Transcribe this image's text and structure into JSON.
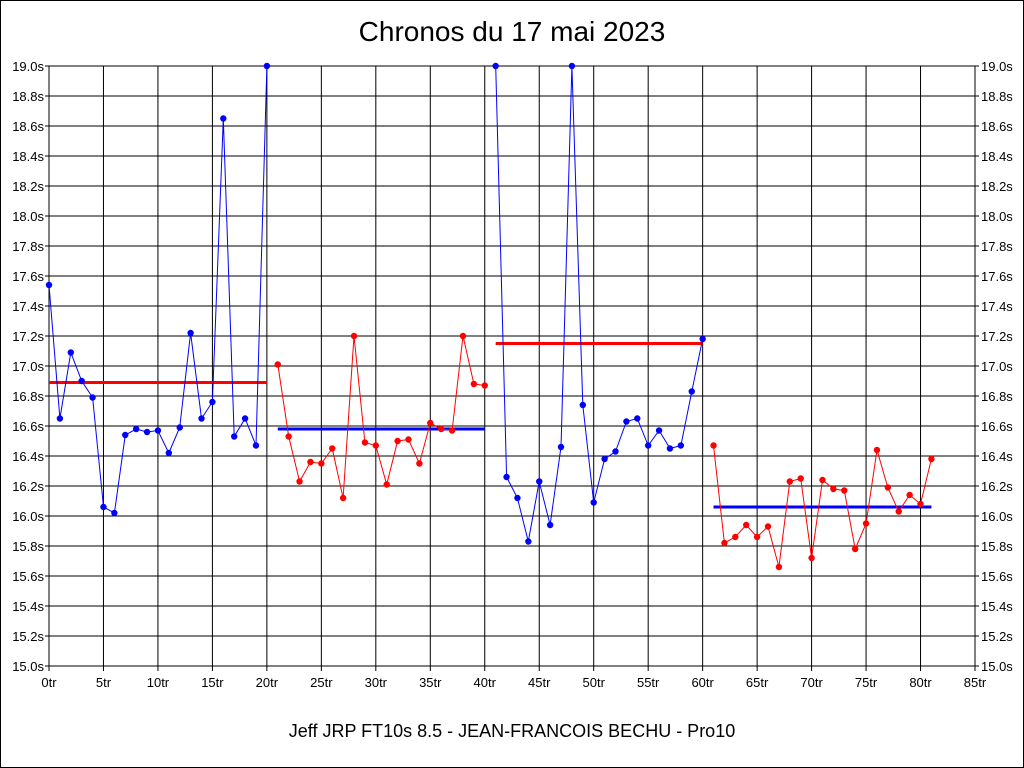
{
  "chart_data": {
    "type": "line",
    "title": "Chronos du 17 mai 2023",
    "footer": "Jeff JRP FT10s 8.5 - JEAN-FRANCOIS BECHU - Pro10",
    "xlabel": "",
    "ylabel": "",
    "xlim": [
      0,
      85
    ],
    "ylim": [
      15.0,
      19.0
    ],
    "grid": true,
    "x_ticks": [
      {
        "value": 0,
        "label": "0tr"
      },
      {
        "value": 5,
        "label": "5tr"
      },
      {
        "value": 10,
        "label": "10tr"
      },
      {
        "value": 15,
        "label": "15tr"
      },
      {
        "value": 20,
        "label": "20tr"
      },
      {
        "value": 25,
        "label": "25tr"
      },
      {
        "value": 30,
        "label": "30tr"
      },
      {
        "value": 35,
        "label": "35tr"
      },
      {
        "value": 40,
        "label": "40tr"
      },
      {
        "value": 45,
        "label": "45tr"
      },
      {
        "value": 50,
        "label": "50tr"
      },
      {
        "value": 55,
        "label": "55tr"
      },
      {
        "value": 60,
        "label": "60tr"
      },
      {
        "value": 65,
        "label": "65tr"
      },
      {
        "value": 70,
        "label": "70tr"
      },
      {
        "value": 75,
        "label": "75tr"
      },
      {
        "value": 80,
        "label": "80tr"
      },
      {
        "value": 85,
        "label": "85tr"
      }
    ],
    "y_ticks": [
      {
        "value": 15.0,
        "label": "15.0s"
      },
      {
        "value": 15.2,
        "label": "15.2s"
      },
      {
        "value": 15.4,
        "label": "15.4s"
      },
      {
        "value": 15.6,
        "label": "15.6s"
      },
      {
        "value": 15.8,
        "label": "15.8s"
      },
      {
        "value": 16.0,
        "label": "16.0s"
      },
      {
        "value": 16.2,
        "label": "16.2s"
      },
      {
        "value": 16.4,
        "label": "16.4s"
      },
      {
        "value": 16.6,
        "label": "16.6s"
      },
      {
        "value": 16.8,
        "label": "16.8s"
      },
      {
        "value": 17.0,
        "label": "17.0s"
      },
      {
        "value": 17.2,
        "label": "17.2s"
      },
      {
        "value": 17.4,
        "label": "17.4s"
      },
      {
        "value": 17.6,
        "label": "17.6s"
      },
      {
        "value": 17.8,
        "label": "17.8s"
      },
      {
        "value": 18.0,
        "label": "18.0s"
      },
      {
        "value": 18.2,
        "label": "18.2s"
      },
      {
        "value": 18.4,
        "label": "18.4s"
      },
      {
        "value": 18.6,
        "label": "18.6s"
      },
      {
        "value": 18.8,
        "label": "18.8s"
      },
      {
        "value": 19.0,
        "label": "19.0s"
      }
    ],
    "series": [
      {
        "color": "#0000ff",
        "x": [
          0,
          1,
          2,
          3,
          4,
          5,
          6,
          7,
          8,
          9,
          10,
          11,
          12,
          13,
          14,
          15,
          16,
          17,
          18,
          19,
          20
        ],
        "y": [
          17.54,
          16.65,
          17.09,
          16.9,
          16.79,
          16.06,
          16.02,
          16.54,
          16.58,
          16.56,
          16.57,
          16.42,
          16.59,
          17.22,
          16.65,
          16.76,
          18.65,
          16.53,
          16.65,
          16.47,
          19.0
        ]
      },
      {
        "color": "#ff0000",
        "x": [
          21,
          22,
          23,
          24,
          25,
          26,
          27,
          28,
          29,
          30,
          31,
          32,
          33,
          34,
          35,
          36,
          37,
          38,
          39,
          40
        ],
        "y": [
          17.01,
          16.53,
          16.23,
          16.36,
          16.35,
          16.45,
          16.12,
          17.2,
          16.49,
          16.47,
          16.21,
          16.5,
          16.51,
          16.35,
          16.62,
          16.58,
          16.57,
          17.2,
          16.88,
          16.87
        ]
      },
      {
        "color": "#0000ff",
        "x": [
          41,
          42,
          43,
          44,
          45,
          46,
          47,
          48,
          49,
          50,
          51,
          52,
          53,
          54,
          55,
          56,
          57,
          58,
          59,
          60
        ],
        "y": [
          19.0,
          16.26,
          16.12,
          15.83,
          16.23,
          15.94,
          16.46,
          19.0,
          16.74,
          16.09,
          16.38,
          16.43,
          16.63,
          16.65,
          16.47,
          16.57,
          16.45,
          16.47,
          16.83,
          17.18
        ]
      },
      {
        "color": "#ff0000",
        "x": [
          61,
          62,
          63,
          64,
          65,
          66,
          67,
          68,
          69,
          70,
          71,
          72,
          73,
          74,
          75,
          76,
          77,
          78,
          79,
          80,
          81
        ],
        "y": [
          16.47,
          15.82,
          15.86,
          15.94,
          15.86,
          15.93,
          15.66,
          16.23,
          16.25,
          15.72,
          16.24,
          16.18,
          16.17,
          15.78,
          15.95,
          16.44,
          16.19,
          16.03,
          16.14,
          16.08,
          16.38
        ]
      }
    ],
    "averages": [
      {
        "color": "#ff0000",
        "x_start": 0,
        "x_end": 20,
        "y": 16.89
      },
      {
        "color": "#0000ff",
        "x_start": 21,
        "x_end": 40,
        "y": 16.58
      },
      {
        "color": "#ff0000",
        "x_start": 41,
        "x_end": 60,
        "y": 17.15
      },
      {
        "color": "#0000ff",
        "x_start": 61,
        "x_end": 81,
        "y": 16.06
      }
    ]
  }
}
